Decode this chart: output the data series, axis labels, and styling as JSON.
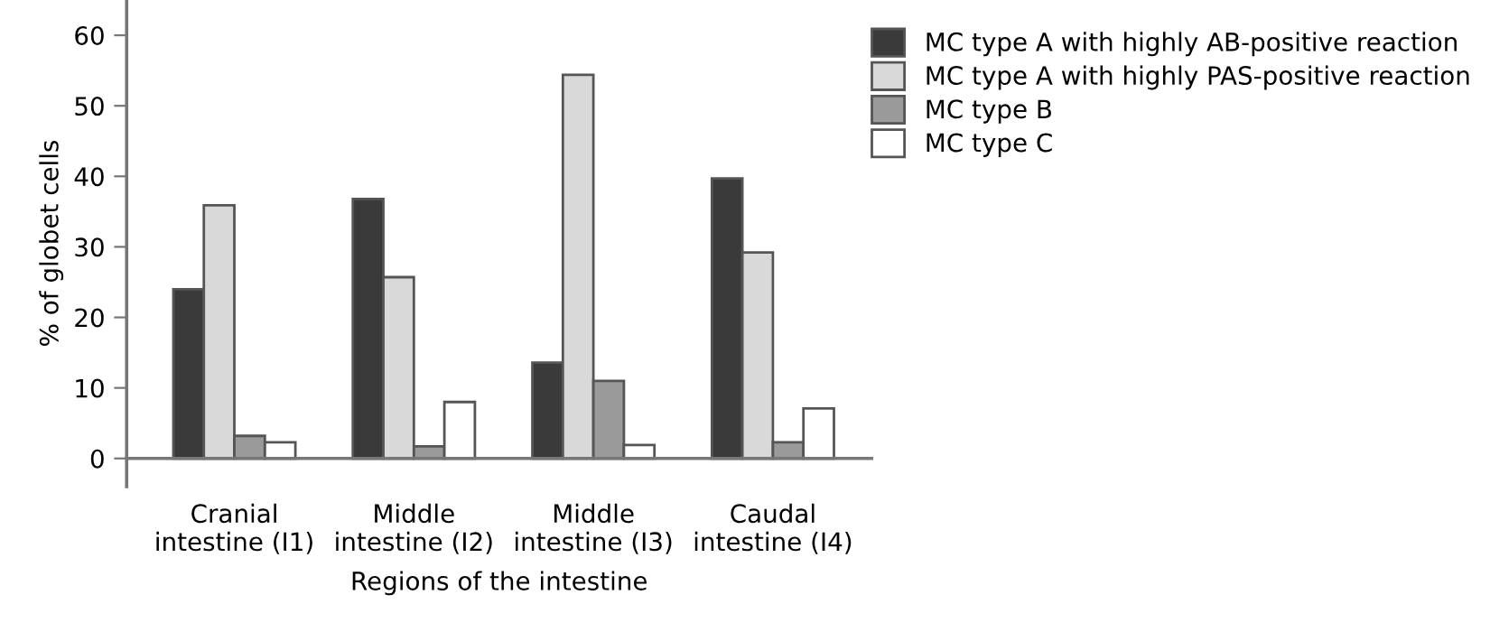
{
  "chart_data": {
    "type": "bar",
    "xlabel": "Regions of the intestine",
    "ylabel": "% of globet cells",
    "categories": [
      "Cranial\nintestine (I1)",
      "Middle\nintestine (I2)",
      "Middle\nintestine (I3)",
      "Caudal\nintestine (I4)"
    ],
    "series": [
      {
        "name": "MC type A with highly AB-positive reaction",
        "color": "#3a3a3a",
        "values": [
          24,
          36.8,
          13.6,
          39.7
        ]
      },
      {
        "name": "MC type A with highly PAS-positive reaction",
        "color": "#d9d9d9",
        "values": [
          35.9,
          25.7,
          54.4,
          29.2
        ]
      },
      {
        "name": "MC type B",
        "color": "#9a9a9a",
        "values": [
          3.2,
          1.7,
          11,
          2.3
        ]
      },
      {
        "name": "MC type C",
        "color": "#ffffff",
        "values": [
          2.3,
          8,
          1.9,
          7.1
        ]
      }
    ],
    "ylim": [
      -4,
      65
    ],
    "yticks": [
      0,
      10,
      20,
      30,
      40,
      50,
      60
    ],
    "grid": false,
    "legend": "top right"
  }
}
